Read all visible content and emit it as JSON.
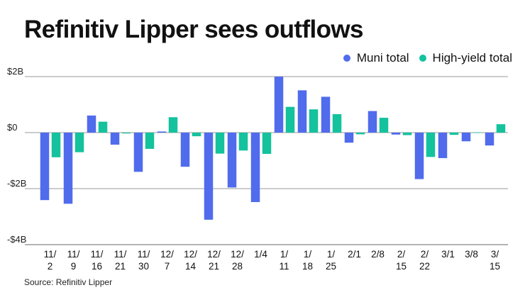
{
  "chart_data": {
    "type": "bar",
    "title": "Refinitiv Lipper sees outflows",
    "xlabel": "",
    "ylabel": "",
    "source": "Source: Refinitiv Lipper",
    "legend_position": "top-right",
    "grid": true,
    "ylim": [
      -4,
      2
    ],
    "yticks": [
      {
        "value": 2,
        "label": "$2B"
      },
      {
        "value": 0,
        "label": "$0"
      },
      {
        "value": -2,
        "label": "-$2B"
      },
      {
        "value": -4,
        "label": "-$4B"
      }
    ],
    "categories": [
      "11/2",
      "11/9",
      "11/16",
      "11/21",
      "11/30",
      "12/7",
      "12/14",
      "12/21",
      "12/28",
      "1/4",
      "1/11",
      "1/18",
      "1/25",
      "2/1",
      "2/8",
      "2/15",
      "2/22",
      "3/1",
      "3/8",
      "3/15"
    ],
    "category_labels": [
      [
        "11/",
        "2"
      ],
      [
        "11/",
        "9"
      ],
      [
        "11/",
        "16"
      ],
      [
        "11/",
        "21"
      ],
      [
        "11/",
        "30"
      ],
      [
        "12/",
        "7"
      ],
      [
        "12/",
        "14"
      ],
      [
        "12/",
        "21"
      ],
      [
        "12/",
        "28"
      ],
      [
        "1/4",
        ""
      ],
      [
        "1/",
        "11"
      ],
      [
        "1/",
        "18"
      ],
      [
        "1/",
        "25"
      ],
      [
        "2/1",
        ""
      ],
      [
        "2/8",
        ""
      ],
      [
        "2/",
        "15"
      ],
      [
        "2/",
        "22"
      ],
      [
        "3/1",
        ""
      ],
      [
        "3/8",
        ""
      ],
      [
        "3/",
        "15"
      ]
    ],
    "series": [
      {
        "name": "Muni total",
        "color": "#506cec",
        "values": [
          -2.41,
          -2.54,
          0.61,
          -0.43,
          -1.4,
          0.04,
          -1.22,
          -3.11,
          -1.96,
          -2.48,
          2.0,
          1.51,
          1.28,
          -0.36,
          0.77,
          -0.07,
          -1.66,
          -0.91,
          -0.31,
          -0.46
        ]
      },
      {
        "name": "High-yield total",
        "color": "#14c29d",
        "values": [
          -0.88,
          -0.7,
          0.39,
          -0.03,
          -0.58,
          0.55,
          -0.13,
          -0.75,
          -0.64,
          -0.76,
          0.92,
          0.83,
          0.66,
          -0.06,
          0.53,
          -0.09,
          -0.87,
          -0.08,
          0.01,
          0.3
        ]
      }
    ],
    "units": "billions of dollars"
  }
}
